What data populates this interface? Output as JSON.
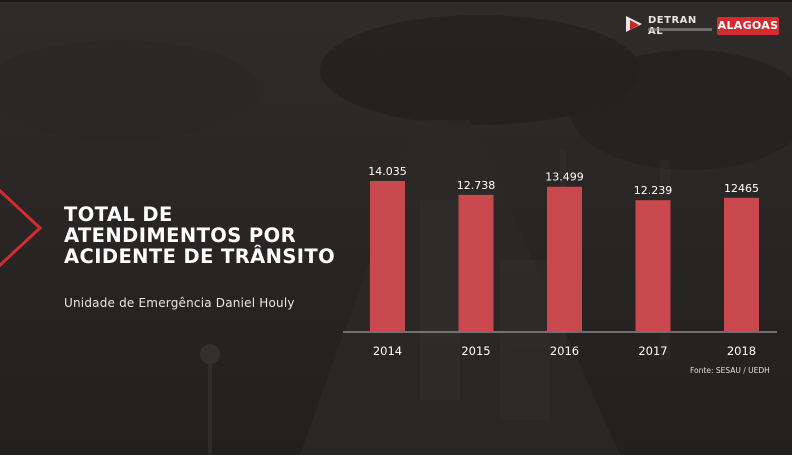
{
  "title_lines": [
    "TOTAL DE",
    "ATENDIMENTOS POR",
    "ACIDENTE DE TRÂNSITO"
  ],
  "subtitle": "Unidade de Emergência Daniel Houly",
  "source": "Fonte: SESAU / UEDH",
  "logos": {
    "detran": "DETRAN AL",
    "alagoas": "ALAGOAS"
  },
  "colors": {
    "bar": "#c9484d",
    "brand_red": "#d22b30",
    "text": "#ffffff"
  },
  "chart_data": {
    "type": "bar",
    "categories": [
      "2014",
      "2015",
      "2016",
      "2017",
      "2018"
    ],
    "values": [
      14035,
      12738,
      13499,
      12239,
      12465
    ],
    "value_labels": [
      "14.035",
      "12.738",
      "13.499",
      "12.239",
      "12465"
    ],
    "title": "TOTAL DE ATENDIMENTOS POR ACIDENTE DE TRÂNSITO",
    "xlabel": "",
    "ylabel": "",
    "grid": false,
    "legend": "none"
  }
}
